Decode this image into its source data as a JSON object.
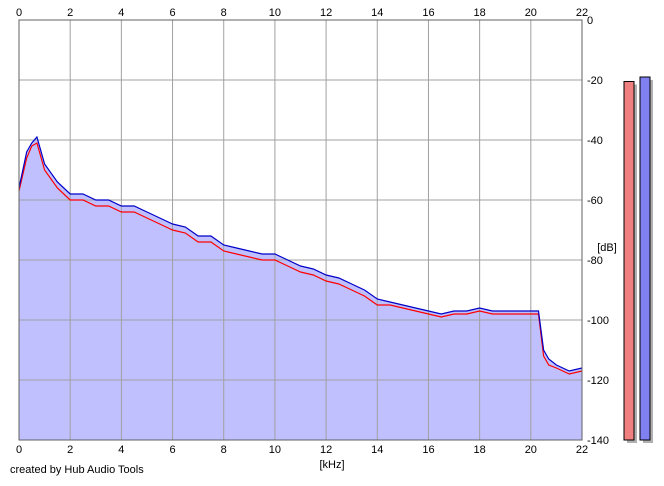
{
  "chart_data": {
    "type": "area",
    "xlabel": "[kHz]",
    "ylabel": "[dB]",
    "xlim": [
      0,
      22
    ],
    "ylim": [
      -140,
      0
    ],
    "x_ticks": [
      0,
      2,
      4,
      6,
      8,
      10,
      12,
      14,
      16,
      18,
      20,
      22
    ],
    "y_ticks": [
      0,
      -20,
      -40,
      -60,
      -80,
      -100,
      -120,
      -140
    ],
    "grid": true,
    "series": [
      {
        "color": "#ff0000",
        "x": [
          0,
          0.3,
          0.5,
          0.7,
          1,
          1.5,
          2,
          2.5,
          3,
          3.5,
          4,
          4.5,
          5,
          5.5,
          6,
          6.5,
          7,
          7.5,
          8,
          8.5,
          9,
          9.5,
          10,
          10.5,
          11,
          11.5,
          12,
          12.5,
          13,
          13.5,
          14,
          14.5,
          15,
          15.5,
          16,
          16.5,
          17,
          17.5,
          18,
          18.5,
          19,
          19.5,
          20,
          20.3,
          20.5,
          20.7,
          21,
          21.5,
          22
        ],
        "y": [
          -57,
          -46,
          -42,
          -41,
          -50,
          -56,
          -60,
          -60,
          -62,
          -62,
          -64,
          -64,
          -66,
          -68,
          -70,
          -71,
          -74,
          -74,
          -77,
          -78,
          -79,
          -80,
          -80,
          -82,
          -84,
          -85,
          -87,
          -88,
          -90,
          -92,
          -95,
          -95,
          -96,
          -97,
          -98,
          -99,
          -98,
          -98,
          -97,
          -98,
          -98,
          -98,
          -98,
          -98,
          -112,
          -115,
          -116,
          -118,
          -117
        ]
      },
      {
        "color": "#0000c8",
        "x": [
          0,
          0.3,
          0.5,
          0.7,
          1,
          1.5,
          2,
          2.5,
          3,
          3.5,
          4,
          4.5,
          5,
          5.5,
          6,
          6.5,
          7,
          7.5,
          8,
          8.5,
          9,
          9.5,
          10,
          10.5,
          11,
          11.5,
          12,
          12.5,
          13,
          13.5,
          14,
          14.5,
          15,
          15.5,
          16,
          16.5,
          17,
          17.5,
          18,
          18.5,
          19,
          19.5,
          20,
          20.3,
          20.5,
          20.7,
          21,
          21.5,
          22
        ],
        "y": [
          -56,
          -44,
          -41,
          -39,
          -48,
          -54,
          -58,
          -58,
          -60,
          -60,
          -62,
          -62,
          -64,
          -66,
          -68,
          -69,
          -72,
          -72,
          -75,
          -76,
          -77,
          -78,
          -78,
          -80,
          -82,
          -83,
          -85,
          -86,
          -88,
          -90,
          -93,
          -94,
          -95,
          -96,
          -97,
          -98,
          -97,
          -97,
          -96,
          -97,
          -97,
          -97,
          -97,
          -97,
          -110,
          -113,
          -115,
          -117,
          -116
        ]
      }
    ],
    "fill_color": "#c0c0ff",
    "meters": [
      {
        "color": "#f08080",
        "value": -20.5
      },
      {
        "color": "#8080f0",
        "value": -19
      }
    ]
  },
  "credit": "created by Hub Audio Tools"
}
